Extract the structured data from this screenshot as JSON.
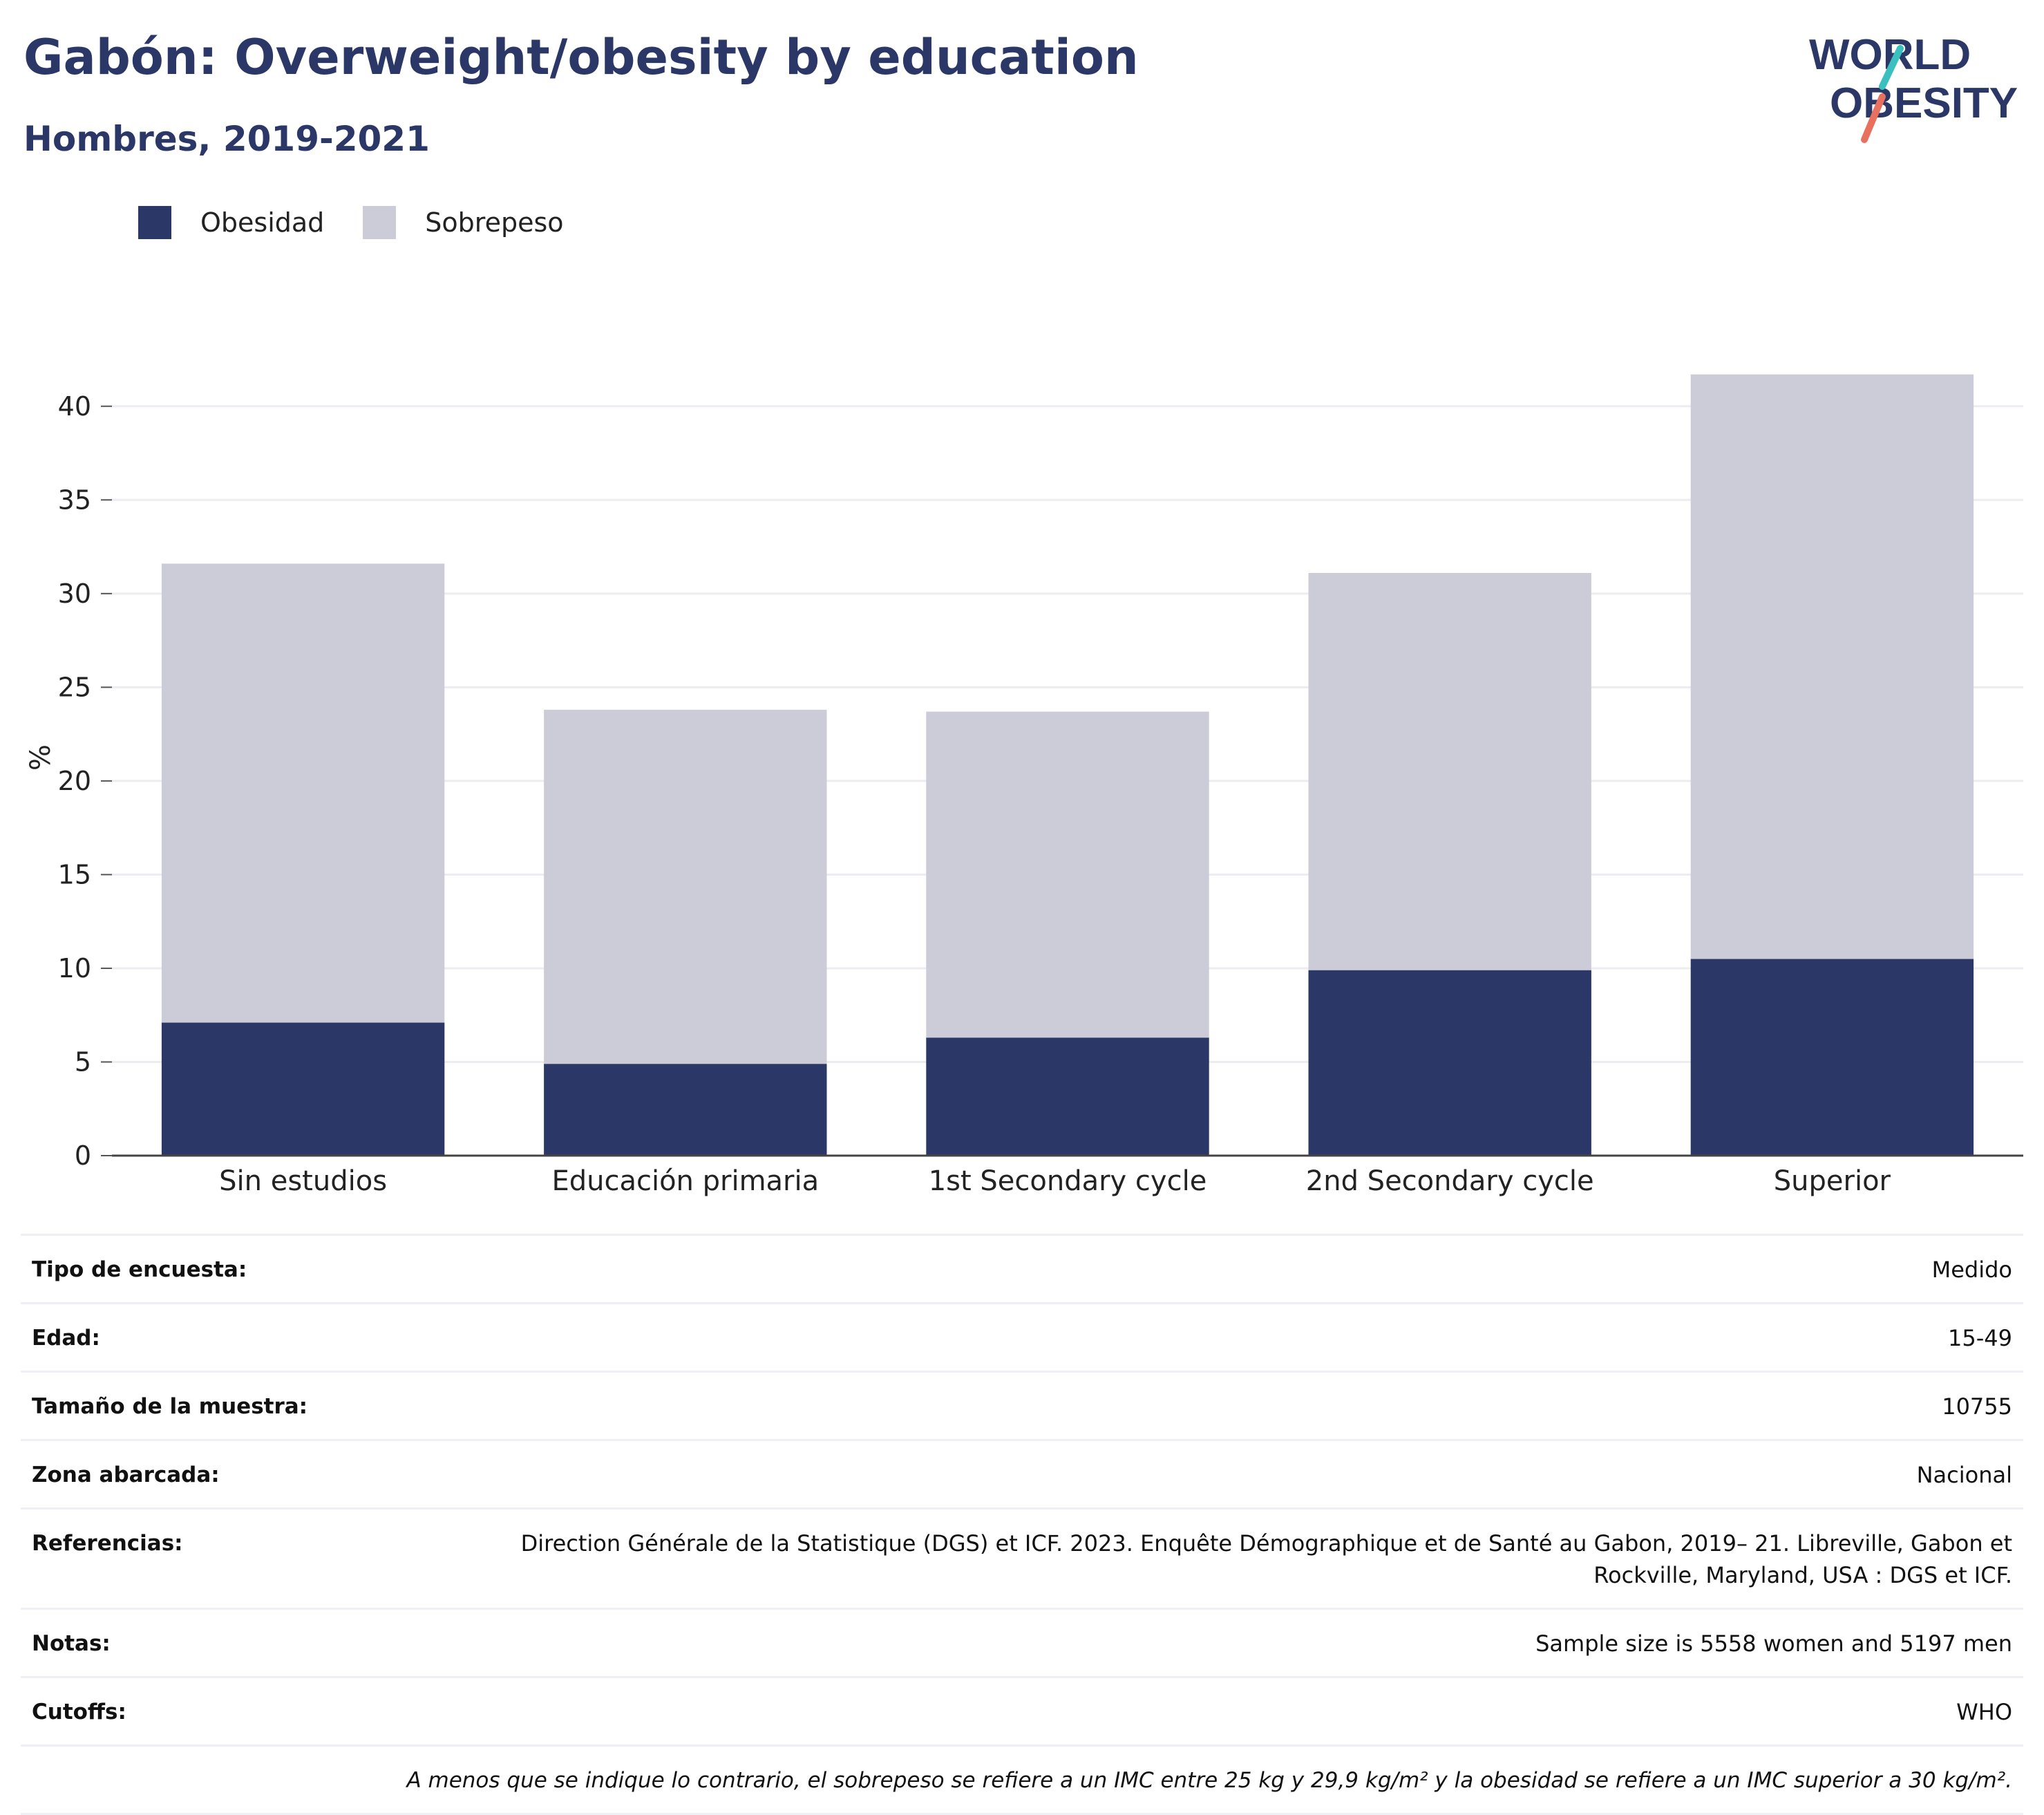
{
  "header": {
    "title": "Gabón: Overweight/obesity by education",
    "subtitle": "Hombres, 2019-2021"
  },
  "logo": {
    "line1": "WORLD",
    "line2": "OBESITY",
    "colors": {
      "text": "#2b3766",
      "slash_top": "#3bbfbf",
      "slash_bottom": "#e8705e"
    }
  },
  "legend": {
    "items": [
      {
        "label": "Obesidad",
        "color": "#2b3766"
      },
      {
        "label": "Sobrepeso",
        "color": "#cbccd7"
      }
    ]
  },
  "chart_data": {
    "type": "bar",
    "stacked": true,
    "categories": [
      "Sin estudios",
      "Educación primaria",
      "1st Secondary cycle",
      "2nd Secondary cycle",
      "Superior"
    ],
    "series": [
      {
        "name": "Obesidad",
        "values": [
          7.1,
          4.9,
          6.3,
          9.9,
          10.5
        ],
        "color": "#2b3766"
      },
      {
        "name": "Sobrepeso",
        "values": [
          24.5,
          18.9,
          17.4,
          21.2,
          31.2
        ],
        "color": "#cbccd7"
      }
    ],
    "ylabel": "%",
    "ylim": [
      0,
      42.5
    ],
    "yticks": [
      0,
      5,
      10,
      15,
      20,
      25,
      30,
      35,
      40
    ],
    "grid": true,
    "legend_position": "top-left"
  },
  "meta": {
    "rows": [
      {
        "key": "Tipo de encuesta:",
        "value": "Medido"
      },
      {
        "key": "Edad:",
        "value": "15-49"
      },
      {
        "key": "Tamaño de la muestra:",
        "value": "10755"
      },
      {
        "key": "Zona abarcada:",
        "value": "Nacional"
      },
      {
        "key": "Referencias:",
        "value": "Direction Générale de la Statistique (DGS) et ICF. 2023. Enquête Démographique et de Santé au Gabon, 2019– 21. Libreville, Gabon et Rockville, Maryland, USA : DGS et ICF."
      },
      {
        "key": "Notas:",
        "value": "Sample size is 5558 women and 5197 men"
      },
      {
        "key": "Cutoffs:",
        "value": "WHO"
      }
    ],
    "footnote": "A menos que se indique lo contrario, el sobrepeso se refiere a un IMC entre 25 kg y 29,9 kg/m² y la obesidad se refiere a un IMC superior a 30 kg/m²."
  }
}
